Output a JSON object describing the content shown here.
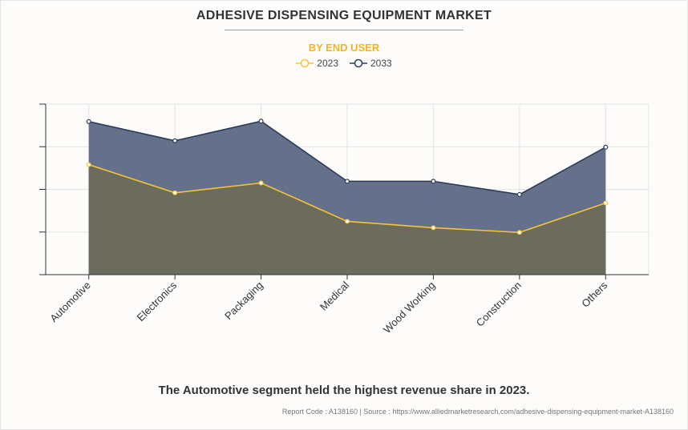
{
  "header": {
    "title": "ADHESIVE DISPENSING EQUIPMENT MARKET",
    "subtitle": "BY END USER"
  },
  "colors": {
    "series_2023_line": "#f7c531",
    "series_2033_line": "#2b3a5c",
    "area_2033_fill": "#5d6985",
    "area_2023_fill": "#6b6b5e",
    "grid": "#e3e3e3",
    "axis": "#333333"
  },
  "chart_data": {
    "type": "area",
    "title": "ADHESIVE DISPENSING EQUIPMENT MARKET",
    "subtitle": "BY END USER",
    "categories": [
      "Automotive",
      "Electronics",
      "Packaging",
      "Medical",
      "Wood Working",
      "Construction",
      "Others"
    ],
    "series": [
      {
        "name": "2023",
        "values": [
          2.58,
          1.92,
          2.15,
          1.25,
          1.1,
          0.99,
          1.68
        ]
      },
      {
        "name": "2033",
        "values": [
          3.59,
          3.14,
          3.6,
          2.19,
          2.19,
          1.88,
          2.99
        ]
      }
    ],
    "ylim": [
      0,
      4
    ],
    "yticks": [
      0,
      1,
      2,
      3,
      4
    ],
    "ytick_labels_visible": false,
    "xlabel": "",
    "ylabel": "",
    "grid": true,
    "legend": "top-center",
    "stacked": false
  },
  "caption": "The Automotive segment held the highest revenue share in 2023.",
  "footer": {
    "text": "Report Code : A138160  |  Source : https://www.alliedmarketresearch.com/adhesive-dispensing-equipment-market-A138160"
  }
}
